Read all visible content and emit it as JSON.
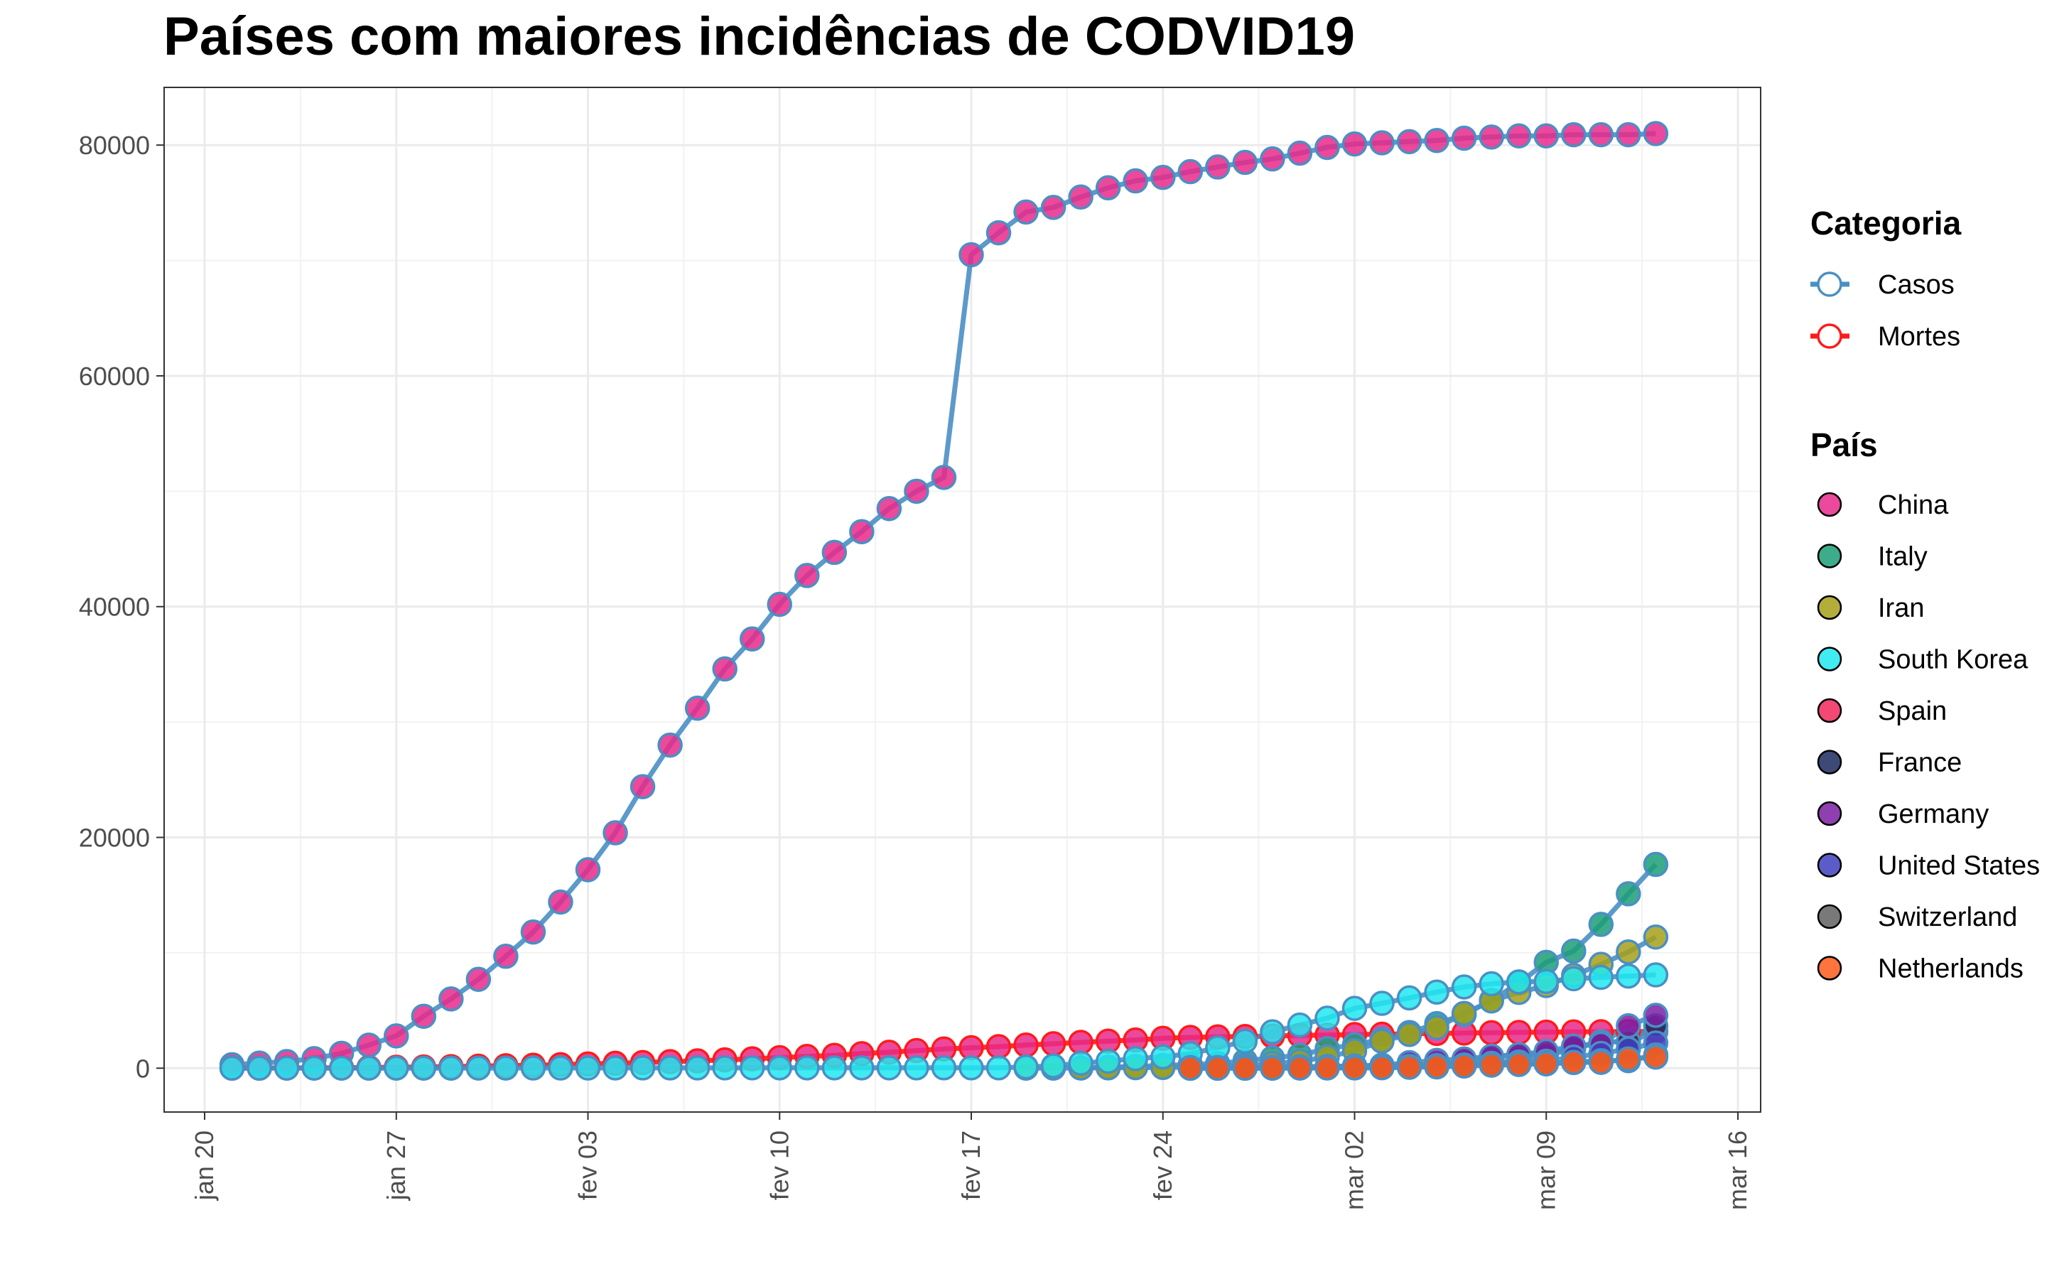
{
  "title": "Países com maiores incidências de CODVID19",
  "legend": {
    "categoria_title": "Categoria",
    "categoria_items": [
      {
        "label": "Casos",
        "color": "#4a8fc4"
      },
      {
        "label": "Mortes",
        "color": "#ff1a1a"
      }
    ],
    "pais_title": "País",
    "pais_items": [
      {
        "label": "China",
        "color": "#e7298a"
      },
      {
        "label": "Italy",
        "color": "#1b9e77"
      },
      {
        "label": "Iran",
        "color": "#a6a01a"
      },
      {
        "label": "South Korea",
        "color": "#1ee8f0"
      },
      {
        "label": "Spain",
        "color": "#f0285a"
      },
      {
        "label": "France",
        "color": "#1b2a5e"
      },
      {
        "label": "Germany",
        "color": "#7b1fa2"
      },
      {
        "label": "United States",
        "color": "#3f3fc0"
      },
      {
        "label": "Switzerland",
        "color": "#616161"
      },
      {
        "label": "Netherlands",
        "color": "#ff5a1a"
      }
    ]
  },
  "chart_data": {
    "type": "line",
    "title": "Países com maiores incidências de CODVID19",
    "xlabel": "",
    "ylabel": "",
    "x_type": "date",
    "xlim": [
      "2020-01-20",
      "2020-03-16"
    ],
    "ylim": [
      -3800,
      85000
    ],
    "x_ticks": [
      {
        "date": "2020-01-20",
        "label": "jan 20"
      },
      {
        "date": "2020-01-27",
        "label": "jan 27"
      },
      {
        "date": "2020-02-03",
        "label": "fev 03"
      },
      {
        "date": "2020-02-10",
        "label": "fev 10"
      },
      {
        "date": "2020-02-17",
        "label": "fev 17"
      },
      {
        "date": "2020-02-24",
        "label": "fev 24"
      },
      {
        "date": "2020-03-02",
        "label": "mar 02"
      },
      {
        "date": "2020-03-09",
        "label": "mar 09"
      },
      {
        "date": "2020-03-16",
        "label": "mar 16"
      }
    ],
    "y_ticks": [
      0,
      20000,
      40000,
      60000,
      80000
    ],
    "grid": true,
    "legend_position": "right",
    "series": [
      {
        "country": "China",
        "category": "Casos",
        "color": "#e7298a",
        "start_date": "2020-01-21",
        "values": [
          300,
          440,
          570,
          830,
          1290,
          2000,
          2800,
          4500,
          6000,
          7700,
          9700,
          11800,
          14400,
          17200,
          20400,
          24400,
          28000,
          31200,
          34600,
          37200,
          40200,
          42700,
          44700,
          46500,
          48500,
          50000,
          51200,
          70500,
          72400,
          74200,
          74600,
          75500,
          76300,
          76900,
          77200,
          77700,
          78100,
          78500,
          78800,
          79300,
          79800,
          80100,
          80200,
          80300,
          80400,
          80600,
          80700,
          80800,
          80800,
          80900,
          80900,
          80900,
          81000
        ]
      },
      {
        "country": "China",
        "category": "Mortes",
        "color": "#e7298a",
        "start_date": "2020-01-21",
        "values": [
          6,
          9,
          17,
          25,
          41,
          56,
          80,
          106,
          132,
          170,
          213,
          259,
          304,
          361,
          425,
          490,
          563,
          636,
          722,
          811,
          908,
          1016,
          1113,
          1259,
          1380,
          1523,
          1665,
          1770,
          1868,
          2004,
          2118,
          2236,
          2345,
          2442,
          2592,
          2663,
          2715,
          2744,
          2788,
          2835,
          2870,
          2912,
          2943,
          2981,
          3012,
          3045,
          3073,
          3100,
          3123,
          3140,
          3162,
          3173,
          3180
        ]
      },
      {
        "country": "Italy",
        "category": "Casos",
        "color": "#1b9e77",
        "start_date": "2020-02-21",
        "values": [
          20,
          79,
          150,
          229,
          322,
          400,
          650,
          888,
          1128,
          1694,
          2036,
          2502,
          3089,
          3858,
          4636,
          5883,
          7375,
          9172,
          10149,
          12462,
          15113,
          17660
        ]
      },
      {
        "country": "Iran",
        "category": "Casos",
        "color": "#a6a01a",
        "start_date": "2020-02-19",
        "values": [
          2,
          5,
          18,
          28,
          43,
          61,
          95,
          139,
          245,
          388,
          593,
          978,
          1501,
          2336,
          2922,
          3513,
          4747,
          5823,
          6566,
          7161,
          8042,
          9000,
          10075,
          11364
        ]
      },
      {
        "country": "South Korea",
        "category": "Casos",
        "color": "#1ee8f0",
        "start_date": "2020-01-21",
        "values": [
          1,
          1,
          2,
          2,
          3,
          4,
          4,
          4,
          4,
          11,
          12,
          15,
          15,
          16,
          19,
          23,
          24,
          24,
          27,
          27,
          28,
          28,
          28,
          28,
          28,
          29,
          30,
          31,
          31,
          104,
          204,
          433,
          602,
          833,
          977,
          1261,
          1766,
          2337,
          3150,
          3736,
          4335,
          5186,
          5621,
          6088,
          6593,
          7041,
          7314,
          7478,
          7513,
          7755,
          7869,
          7979,
          8086
        ]
      },
      {
        "country": "Spain",
        "category": "Casos",
        "color": "#f0285a",
        "start_date": "2020-02-25",
        "values": [
          6,
          13,
          15,
          32,
          45,
          84,
          120,
          165,
          222,
          259,
          400,
          500,
          673,
          1073,
          1695,
          2277,
          2277,
          3146
        ]
      },
      {
        "country": "France",
        "category": "Casos",
        "color": "#1b2a5e",
        "start_date": "2020-02-25",
        "values": [
          14,
          18,
          38,
          57,
          100,
          130,
          191,
          204,
          288,
          380,
          656,
          957,
          1134,
          1217,
          1792,
          2289,
          2289,
          3672
        ]
      },
      {
        "country": "Germany",
        "category": "Casos",
        "color": "#7b1fa2",
        "start_date": "2020-02-25",
        "values": [
          18,
          26,
          48,
          79,
          130,
          159,
          196,
          262,
          482,
          670,
          799,
          1040,
          1176,
          1457,
          1908,
          2078,
          3675,
          4585
        ]
      },
      {
        "country": "United States",
        "category": "Casos",
        "color": "#3f3fc0",
        "start_date": "2020-02-25",
        "values": [
          53,
          59,
          60,
          62,
          70,
          76,
          101,
          122,
          153,
          221,
          278,
          417,
          537,
          605,
          959,
          1281,
          1663,
          2179
        ]
      },
      {
        "country": "Switzerland",
        "category": "Casos",
        "color": "#616161",
        "start_date": "2020-02-25",
        "values": [
          1,
          1,
          8,
          8,
          18,
          27,
          42,
          56,
          90,
          114,
          214,
          268,
          337,
          374,
          491,
          652,
          652,
          1139
        ]
      },
      {
        "country": "Netherlands",
        "category": "Casos",
        "color": "#ff5a1a",
        "start_date": "2020-02-25",
        "values": [
          0,
          0,
          1,
          6,
          10,
          18,
          24,
          38,
          82,
          128,
          188,
          265,
          321,
          382,
          503,
          503,
          804,
          959
        ]
      }
    ]
  }
}
